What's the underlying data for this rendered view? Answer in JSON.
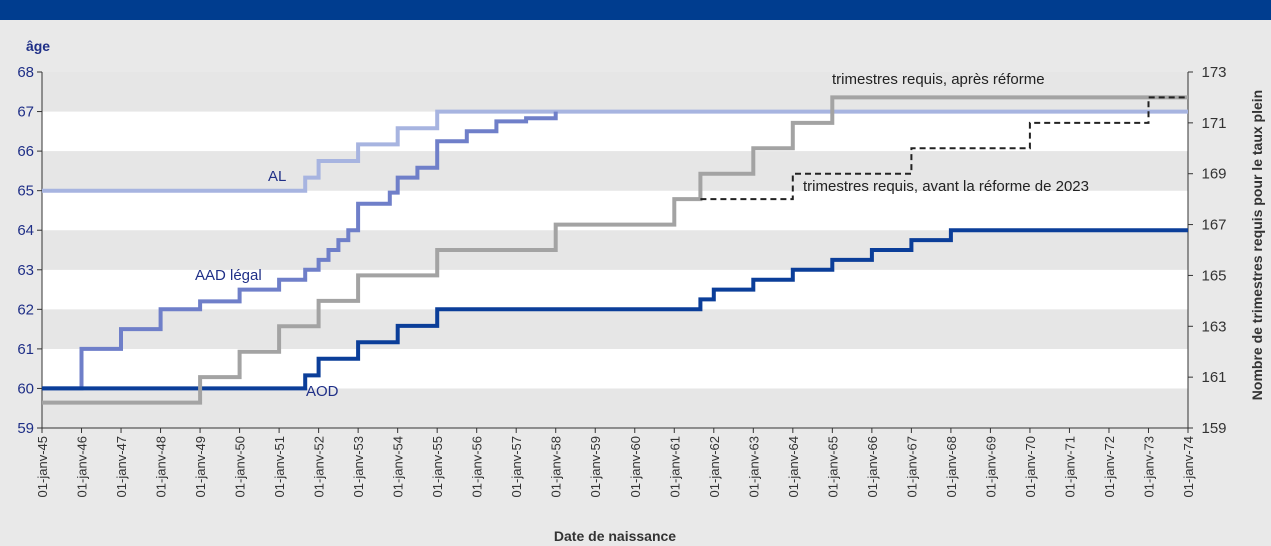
{
  "chart_data": {
    "type": "line",
    "ylabel_left": "âge",
    "ylabel_right": "Nombre de trimestres requis pour le taux plein",
    "xlabel": "Date de naissance",
    "ylim_left": [
      59,
      68
    ],
    "ylim_right": [
      159,
      173
    ],
    "yticks_left": [
      "59",
      "60",
      "61",
      "62",
      "63",
      "64",
      "65",
      "66",
      "67",
      "68"
    ],
    "yticks_right": [
      "159",
      "161",
      "163",
      "165",
      "167",
      "169",
      "171",
      "173"
    ],
    "xticks": [
      "01-janv-45",
      "01-janv-46",
      "01-janv-47",
      "01-janv-48",
      "01-janv-49",
      "01-janv-50",
      "01-janv-51",
      "01-janv-52",
      "01-janv-53",
      "01-janv-54",
      "01-janv-55",
      "01-janv-56",
      "01-janv-57",
      "01-janv-58",
      "01-janv-59",
      "01-janv-60",
      "01-janv-61",
      "01-janv-62",
      "01-janv-63",
      "01-janv-64",
      "01-janv-65",
      "01-janv-66",
      "01-janv-67",
      "01-janv-68",
      "01-janv-69",
      "01-janv-70",
      "01-janv-71",
      "01-janv-72",
      "01-janv-73",
      "01-janv-74"
    ],
    "grid": "horizontal bands",
    "colors": {
      "header_bar": "#003d8f",
      "band_dark": "#e6e6e6",
      "band_light": "#ffffff",
      "axis_text_left": "#1f2f87",
      "axis_text_right": "#333333"
    },
    "series": [
      {
        "name": "AL",
        "axis": "left",
        "style": "solid",
        "color": "#a7b4e0",
        "points": [
          [
            1945.0,
            65
          ],
          [
            1951.66,
            65
          ],
          [
            1951.66,
            65.33
          ],
          [
            1952.0,
            65.33
          ],
          [
            1952.0,
            65.75
          ],
          [
            1953.0,
            65.75
          ],
          [
            1953.0,
            66.17
          ],
          [
            1954.0,
            66.17
          ],
          [
            1954.0,
            66.58
          ],
          [
            1955.0,
            66.58
          ],
          [
            1955.0,
            67
          ],
          [
            1974.0,
            67
          ]
        ]
      },
      {
        "name": "AAD légal",
        "axis": "left",
        "style": "solid",
        "color": "#6f7fc9",
        "points": [
          [
            1945.0,
            60
          ],
          [
            1946.0,
            60
          ],
          [
            1946.0,
            61
          ],
          [
            1947.0,
            61
          ],
          [
            1947.0,
            61.5
          ],
          [
            1948.0,
            61.5
          ],
          [
            1948.0,
            62
          ],
          [
            1949.0,
            62
          ],
          [
            1949.0,
            62.2
          ],
          [
            1950.0,
            62.2
          ],
          [
            1950.0,
            62.5
          ],
          [
            1951.0,
            62.5
          ],
          [
            1951.0,
            62.75
          ],
          [
            1951.66,
            62.75
          ],
          [
            1951.66,
            63.0
          ],
          [
            1952.0,
            63.0
          ],
          [
            1952.0,
            63.25
          ],
          [
            1952.25,
            63.25
          ],
          [
            1952.25,
            63.5
          ],
          [
            1952.5,
            63.5
          ],
          [
            1952.5,
            63.75
          ],
          [
            1952.75,
            63.75
          ],
          [
            1952.75,
            64.0
          ],
          [
            1953.0,
            64.0
          ],
          [
            1953.0,
            64.25
          ],
          [
            1953.0,
            64.67
          ],
          [
            1953.8,
            64.67
          ],
          [
            1953.8,
            64.95
          ],
          [
            1954.0,
            64.95
          ],
          [
            1954.0,
            65.33
          ],
          [
            1954.5,
            65.33
          ],
          [
            1954.5,
            65.58
          ],
          [
            1955.0,
            65.58
          ],
          [
            1955.0,
            66.25
          ],
          [
            1955.75,
            66.25
          ],
          [
            1955.75,
            66.5
          ],
          [
            1956.5,
            66.5
          ],
          [
            1956.5,
            66.75
          ],
          [
            1957.25,
            66.75
          ],
          [
            1957.25,
            66.83
          ],
          [
            1958.0,
            66.83
          ],
          [
            1958.0,
            67
          ]
        ]
      },
      {
        "name": "AOD",
        "axis": "left",
        "style": "solid",
        "color": "#0b3e99",
        "points": [
          [
            1945.0,
            60
          ],
          [
            1951.66,
            60
          ],
          [
            1951.66,
            60.33
          ],
          [
            1952.0,
            60.33
          ],
          [
            1952.0,
            60.75
          ],
          [
            1953.0,
            60.75
          ],
          [
            1953.0,
            61.17
          ],
          [
            1954.0,
            61.17
          ],
          [
            1954.0,
            61.58
          ],
          [
            1955.0,
            61.58
          ],
          [
            1955.0,
            62
          ],
          [
            1961.66,
            62
          ],
          [
            1961.66,
            62.25
          ],
          [
            1962.0,
            62.25
          ],
          [
            1962.0,
            62.5
          ],
          [
            1963.0,
            62.5
          ],
          [
            1963.0,
            62.75
          ],
          [
            1964.0,
            62.75
          ],
          [
            1964.0,
            63
          ],
          [
            1965.0,
            63
          ],
          [
            1965.0,
            63.25
          ],
          [
            1966.0,
            63.25
          ],
          [
            1966.0,
            63.5
          ],
          [
            1967.0,
            63.5
          ],
          [
            1967.0,
            63.75
          ],
          [
            1968.0,
            63.75
          ],
          [
            1968.0,
            64
          ],
          [
            1974.0,
            64
          ]
        ]
      },
      {
        "name": "trimestres requis, après réforme",
        "axis": "right",
        "style": "solid",
        "color": "#a3a3a3",
        "points": [
          [
            1945.0,
            160
          ],
          [
            1949.0,
            160
          ],
          [
            1949.0,
            161
          ],
          [
            1950.0,
            161
          ],
          [
            1950.0,
            162
          ],
          [
            1951.0,
            162
          ],
          [
            1951.0,
            163
          ],
          [
            1952.0,
            163
          ],
          [
            1952.0,
            164
          ],
          [
            1953.0,
            164
          ],
          [
            1953.0,
            165
          ],
          [
            1955.0,
            165
          ],
          [
            1955.0,
            166
          ],
          [
            1958.0,
            166
          ],
          [
            1958.0,
            167
          ],
          [
            1961.0,
            167
          ],
          [
            1961.0,
            168
          ],
          [
            1961.66,
            168
          ],
          [
            1961.66,
            169
          ],
          [
            1963.0,
            169
          ],
          [
            1963.0,
            170
          ],
          [
            1964.0,
            170
          ],
          [
            1964.0,
            171
          ],
          [
            1965.0,
            171
          ],
          [
            1965.0,
            172
          ],
          [
            1974.0,
            172
          ]
        ]
      },
      {
        "name": "trimestres requis, avant la réforme de 2023",
        "axis": "right",
        "style": "dashed",
        "color": "#222222",
        "points": [
          [
            1961.66,
            168
          ],
          [
            1964.0,
            168
          ],
          [
            1964.0,
            169
          ],
          [
            1967.0,
            169
          ],
          [
            1967.0,
            170
          ],
          [
            1970.0,
            170
          ],
          [
            1970.0,
            171
          ],
          [
            1973.0,
            171
          ],
          [
            1973.0,
            172
          ],
          [
            1974.0,
            172
          ]
        ]
      }
    ],
    "annotations": [
      {
        "text": "AL",
        "color": "#1f2f87"
      },
      {
        "text": "AAD légal",
        "color": "#1f2f87"
      },
      {
        "text": "AOD",
        "color": "#1f2f87"
      },
      {
        "text": "trimestres requis, après réforme",
        "color": "#222222"
      },
      {
        "text": "trimestres requis, avant la réforme de 2023",
        "color": "#222222"
      }
    ]
  }
}
